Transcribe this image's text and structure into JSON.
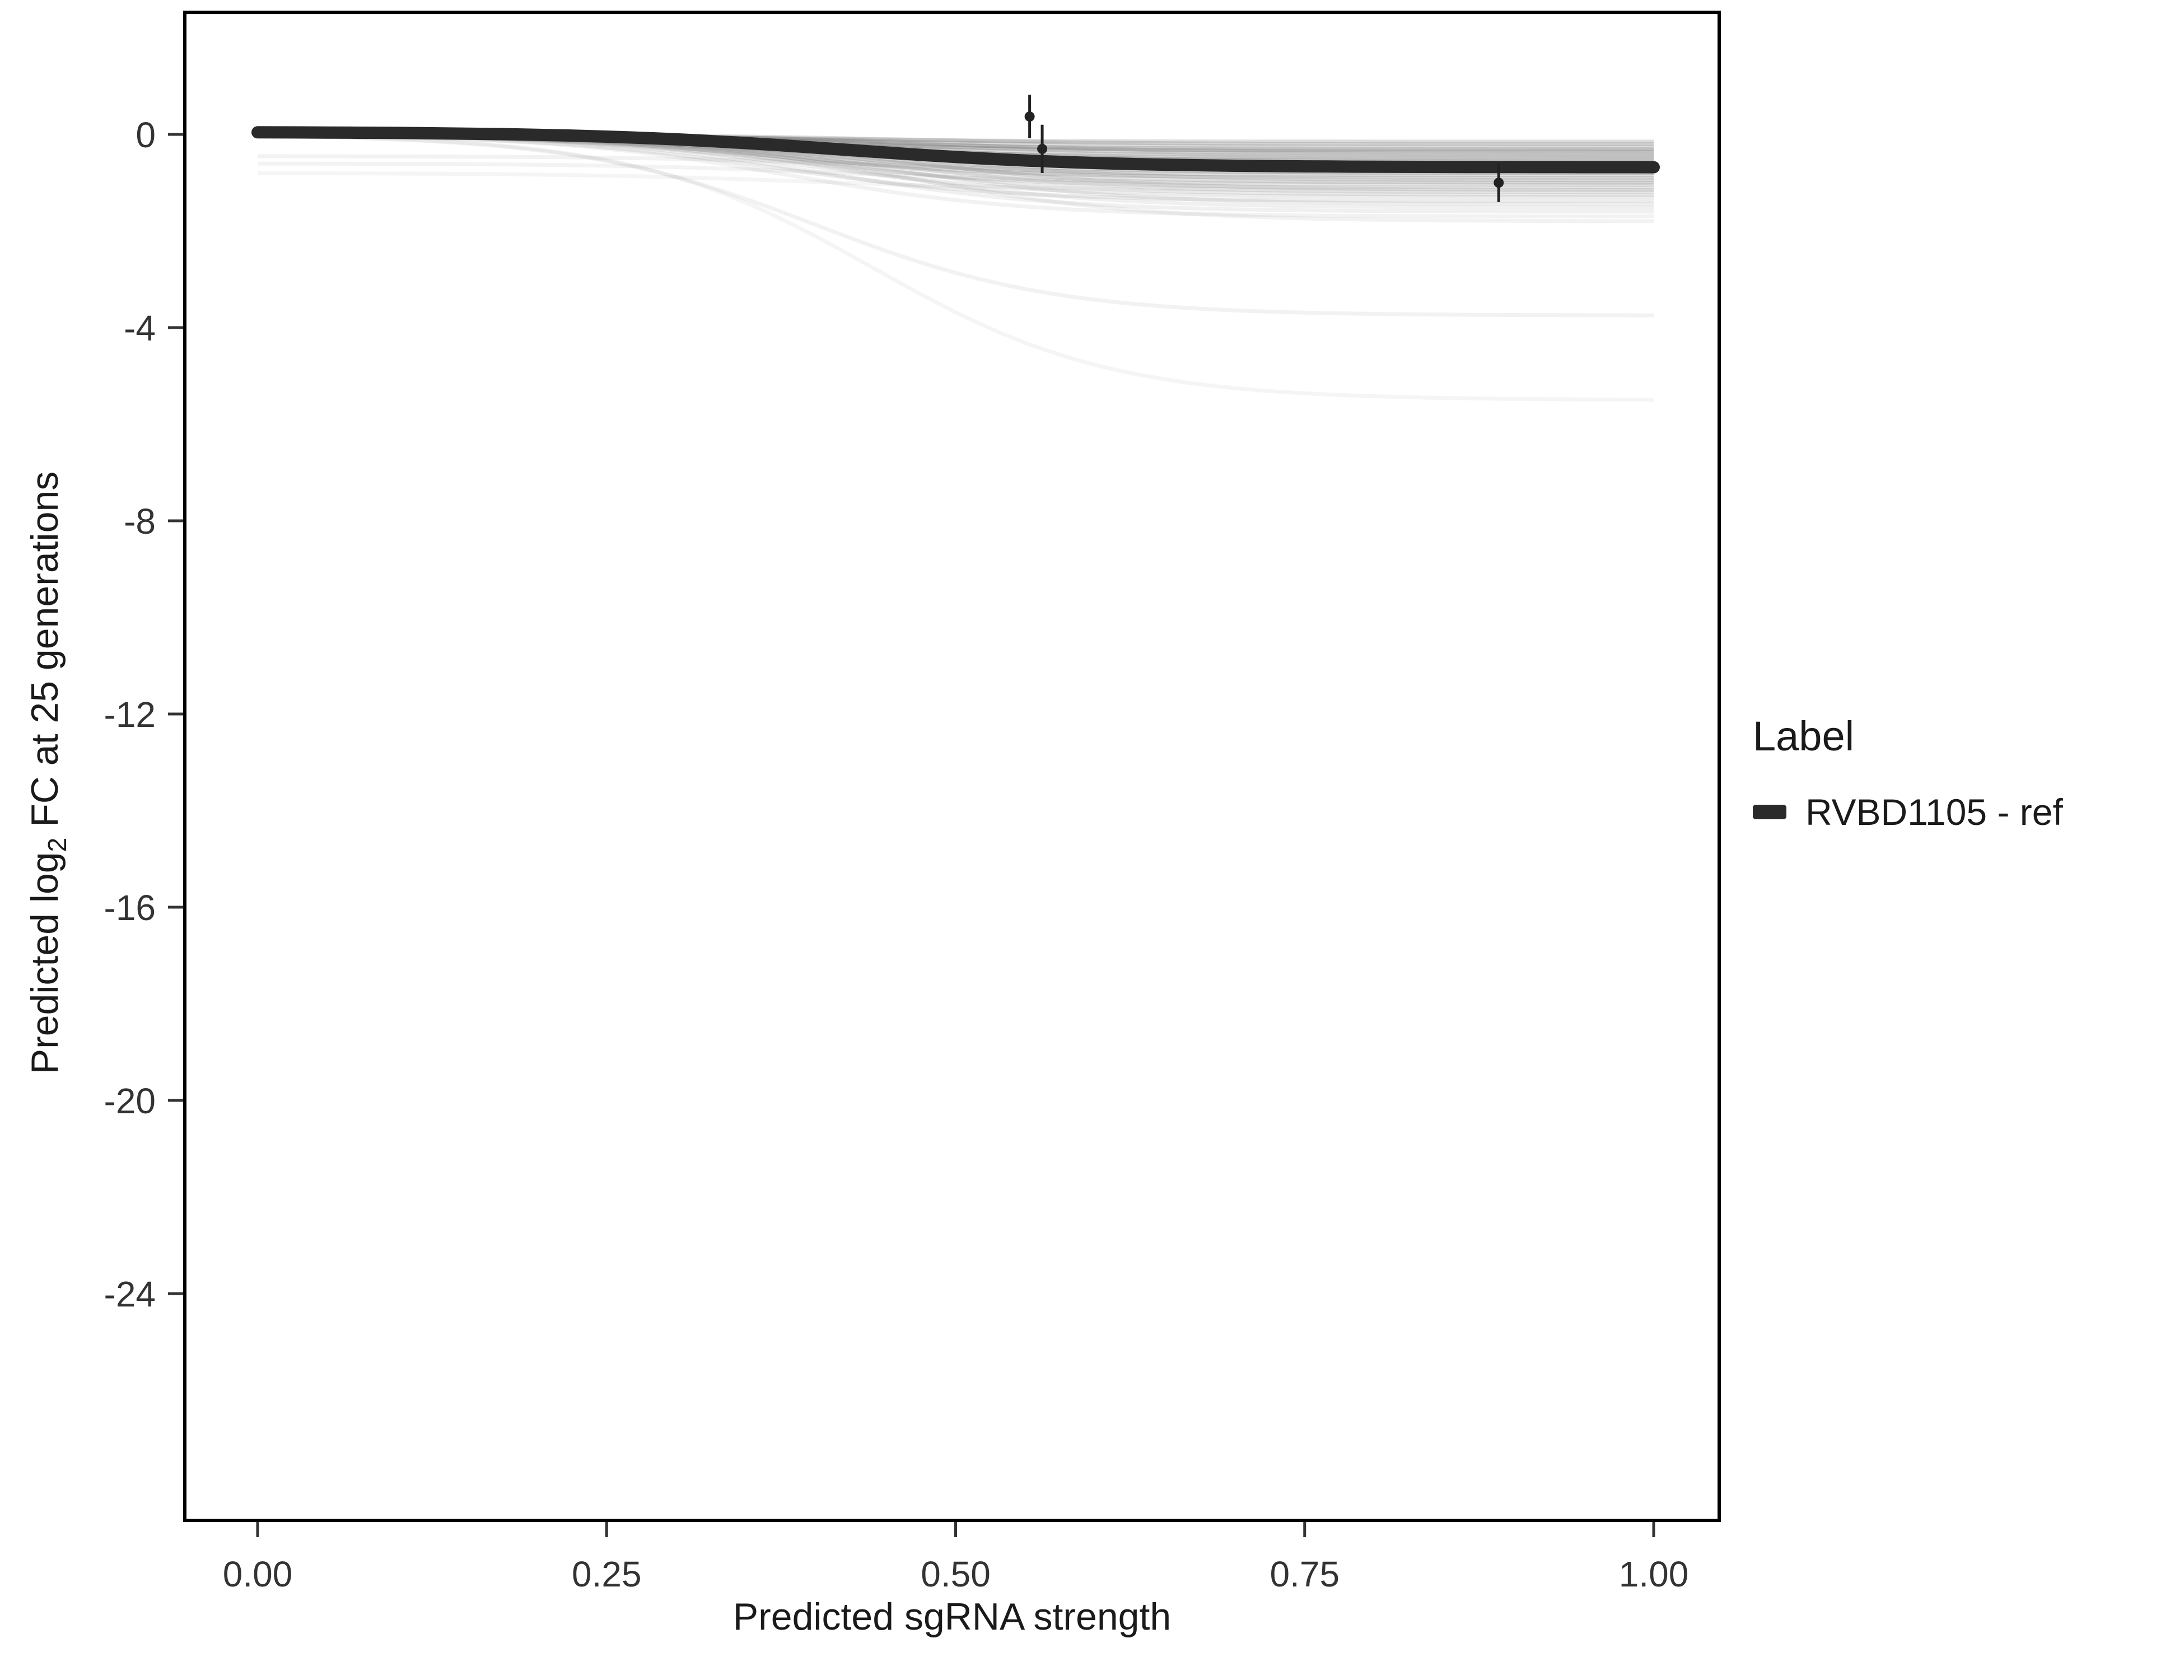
{
  "figure": {
    "xlabel": "Predicted sgRNA strength",
    "ylabel_pre": "Predicted  log",
    "ylabel_sub": "2",
    "ylabel_post": " FC at 25 generations",
    "legend": {
      "title": "Label",
      "items": [
        {
          "label": "RVBD1105 - ref",
          "color": "#2a2a2a"
        }
      ]
    }
  },
  "chart_data": {
    "type": "line",
    "title": "",
    "xlabel": "Predicted sgRNA strength",
    "ylabel": "Predicted log2 FC at 25 generations",
    "xlim": [
      0,
      1
    ],
    "ylim": [
      -28.5,
      2.5
    ],
    "x_ticks": [
      0,
      0.25,
      0.5,
      0.75,
      1
    ],
    "x_tick_labels": [
      "0.00",
      "0.25",
      "0.50",
      "0.75",
      "1.00"
    ],
    "y_ticks": [
      0,
      -4,
      -8,
      -12,
      -16,
      -20,
      -24
    ],
    "y_tick_labels": [
      "0",
      "-4",
      "-8",
      "-12",
      "-16",
      "-20",
      "-24"
    ],
    "grid": false,
    "legend_position": "right",
    "main_series": {
      "name": "RVBD1105 - ref",
      "color": "#2a2a2a",
      "shape": "sigmoid",
      "start": 0.05,
      "end": -0.68,
      "midpoint": 0.42,
      "slope": 0.09
    },
    "ensemble": {
      "description": "background ensemble of per-curve sigmoid fits, light gray",
      "color": "#555555",
      "slope": 0.085,
      "curves": [
        {
          "end": -0.15,
          "opacity": 0.2
        },
        {
          "end": -0.2,
          "opacity": 0.2
        },
        {
          "end": -0.25,
          "opacity": 0.2
        },
        {
          "end": -0.3,
          "opacity": 0.2
        },
        {
          "end": -0.33,
          "opacity": 0.2
        },
        {
          "end": -0.36,
          "opacity": 0.2
        },
        {
          "end": -0.4,
          "opacity": 0.2
        },
        {
          "end": -0.44,
          "opacity": 0.2
        },
        {
          "end": -0.48,
          "opacity": 0.2
        },
        {
          "end": -0.52,
          "opacity": 0.2
        },
        {
          "end": -0.56,
          "opacity": 0.2
        },
        {
          "end": -0.6,
          "opacity": 0.2
        },
        {
          "end": -0.64,
          "opacity": 0.2
        },
        {
          "end": -0.68,
          "opacity": 0.2
        },
        {
          "end": -0.72,
          "opacity": 0.18
        },
        {
          "end": -0.76,
          "opacity": 0.18
        },
        {
          "end": -0.8,
          "opacity": 0.18
        },
        {
          "end": -0.85,
          "opacity": 0.18
        },
        {
          "end": -0.9,
          "opacity": 0.18
        },
        {
          "end": -0.95,
          "opacity": 0.16
        },
        {
          "end": -1.0,
          "opacity": 0.16
        },
        {
          "end": -1.05,
          "opacity": 0.13
        },
        {
          "end": -1.1,
          "opacity": 0.13
        },
        {
          "end": -1.15,
          "opacity": 0.13
        },
        {
          "end": -1.2,
          "opacity": 0.12
        },
        {
          "end": -1.25,
          "opacity": 0.12
        },
        {
          "end": -1.3,
          "opacity": 0.11
        },
        {
          "end": -1.38,
          "opacity": 0.11
        },
        {
          "end": -1.45,
          "opacity": 0.1
        },
        {
          "end": -1.52,
          "opacity": 0.09
        },
        {
          "end": -1.6,
          "opacity": 0.09
        },
        {
          "end": -1.7,
          "opacity": 0.08
        },
        {
          "end": -1.8,
          "opacity": 0.08
        },
        {
          "start": -0.45,
          "end": -0.8,
          "opacity": 0.08
        },
        {
          "start": -0.6,
          "end": -1.0,
          "opacity": 0.07
        },
        {
          "start": -0.8,
          "end": -1.15,
          "opacity": 0.06
        },
        {
          "end": -3.75,
          "opacity": 0.08,
          "midpoint": 0.4
        },
        {
          "end": -5.5,
          "opacity": 0.06,
          "midpoint": 0.44
        }
      ]
    },
    "points": [
      {
        "x": 0.553,
        "y": 0.37,
        "err": 0.45
      },
      {
        "x": 0.562,
        "y": -0.3,
        "err": 0.5
      },
      {
        "x": 0.889,
        "y": -1.0,
        "err": 0.4
      }
    ]
  }
}
